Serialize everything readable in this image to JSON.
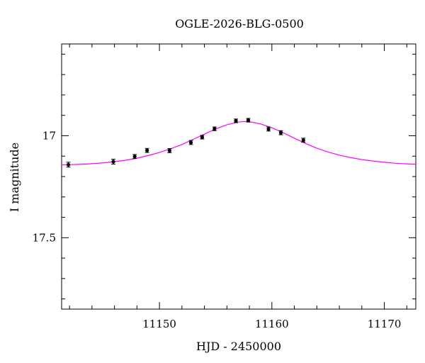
{
  "chart_data": {
    "type": "scatter",
    "title": "OGLE-2026-BLG-0500",
    "xlabel": "HJD - 2450000",
    "ylabel": "I magnitude",
    "xlim": [
      11141.3,
      11172.8
    ],
    "ylim": [
      17.85,
      16.55
    ],
    "y_inverted": true,
    "grid": false,
    "x_ticks": [
      11150,
      11160,
      11170
    ],
    "x_tick_labels": [
      "11150",
      "11160",
      "11170"
    ],
    "y_ticks": [
      17,
      17.5
    ],
    "y_tick_labels": [
      "17",
      "17.5"
    ],
    "points": [
      {
        "x": 11141.9,
        "y": 17.142,
        "err": 0.012
      },
      {
        "x": 11145.9,
        "y": 17.127,
        "err": 0.012
      },
      {
        "x": 11147.8,
        "y": 17.102,
        "err": 0.01
      },
      {
        "x": 11148.9,
        "y": 17.072,
        "err": 0.01
      },
      {
        "x": 11150.9,
        "y": 17.073,
        "err": 0.01
      },
      {
        "x": 11152.8,
        "y": 17.033,
        "err": 0.01
      },
      {
        "x": 11153.8,
        "y": 17.007,
        "err": 0.009
      },
      {
        "x": 11154.9,
        "y": 16.966,
        "err": 0.009
      },
      {
        "x": 11156.8,
        "y": 16.927,
        "err": 0.009
      },
      {
        "x": 11157.9,
        "y": 16.924,
        "err": 0.009
      },
      {
        "x": 11159.7,
        "y": 16.967,
        "err": 0.01
      },
      {
        "x": 11160.8,
        "y": 16.985,
        "err": 0.01
      },
      {
        "x": 11162.8,
        "y": 17.022,
        "err": 0.01
      }
    ],
    "model": {
      "color": "#ff00ff",
      "x": [
        11141.3,
        11142,
        11143,
        11144,
        11145,
        11146,
        11147,
        11148,
        11149,
        11150,
        11151,
        11152,
        11153,
        11154,
        11155,
        11156,
        11157,
        11157.6,
        11158,
        11159,
        11160,
        11161,
        11162,
        11163,
        11164,
        11165,
        11166,
        11167,
        11168,
        11169,
        11170,
        11171,
        11172,
        11172.8
      ],
      "y": [
        17.143,
        17.142,
        17.14,
        17.137,
        17.133,
        17.127,
        17.12,
        17.11,
        17.097,
        17.082,
        17.064,
        17.043,
        17.018,
        16.992,
        16.967,
        16.946,
        16.933,
        16.93,
        16.931,
        16.942,
        16.961,
        16.985,
        17.012,
        17.038,
        17.061,
        17.08,
        17.095,
        17.107,
        17.117,
        17.124,
        17.13,
        17.135,
        17.138,
        17.14
      ]
    },
    "marker_color": "#000000"
  }
}
